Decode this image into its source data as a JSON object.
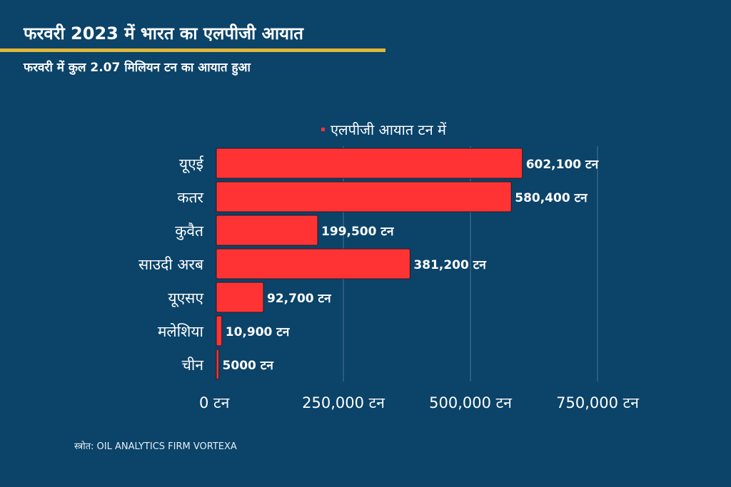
{
  "header": {
    "title": "फरवरी 2023 में भारत का एलपीजी आयात",
    "subtitle": "फरवरी में कुल 2.07 मिलियन टन का आयात हुआ"
  },
  "legend": {
    "label": "एलपीजी आयात टन में",
    "color": "#ff3333"
  },
  "footer": {
    "source": "स्त्रोत: OIL ANALYTICS FIRM VORTEXA"
  },
  "colors": {
    "background": "#0b4369",
    "bar": "#ff3333",
    "accent_rule": "#e0b73a",
    "grid": "#2a5b80"
  },
  "chart_data": {
    "type": "bar",
    "orientation": "horizontal",
    "title": "फरवरी 2023 में भारत का एलपीजी आयात",
    "subtitle": "फरवरी में कुल 2.07 मिलियन टन का आयात हुआ",
    "xlabel": "",
    "ylabel": "",
    "xlim": [
      0,
      750000
    ],
    "grid": true,
    "legend_position": "top",
    "categories": [
      "यूएई",
      "कतर",
      "कुवैत",
      "साउदी अरब",
      "यूएसए",
      "मलेशिया",
      "चीन"
    ],
    "values": [
      602100,
      580400,
      199500,
      381200,
      92700,
      10900,
      5000
    ],
    "value_labels": [
      "602,100 टन",
      "580,400 टन",
      "199,500 टन",
      "381,200 टन",
      "92,700 टन",
      "10,900 टन",
      "5000 टन"
    ],
    "xticks": [
      0,
      250000,
      500000,
      750000
    ],
    "xtick_labels": [
      "0 टन",
      "250,000 टन",
      "500,000 टन",
      "750,000 टन"
    ],
    "series": [
      {
        "name": "एलपीजी आयात टन में",
        "values": [
          602100,
          580400,
          199500,
          381200,
          92700,
          10900,
          5000
        ]
      }
    ]
  }
}
